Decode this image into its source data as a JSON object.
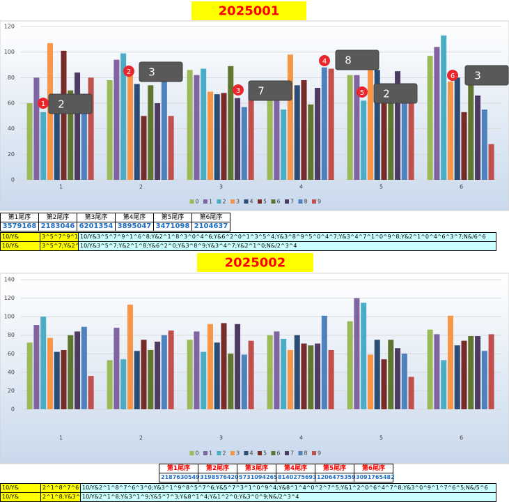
{
  "chart_data": [
    {
      "type": "bar",
      "title": "2025001",
      "categories": [
        "1",
        "2",
        "3",
        "4",
        "5",
        "6"
      ],
      "ylim": [
        0,
        120
      ],
      "yticks": [
        0,
        20,
        40,
        60,
        80,
        100,
        120
      ],
      "grid": true,
      "legend": "bottom",
      "series": [
        {
          "name": "0",
          "color": "#9bbb59",
          "values": [
            60,
            78,
            86,
            75,
            82,
            97
          ]
        },
        {
          "name": "1",
          "color": "#8064a2",
          "values": [
            80,
            94,
            82,
            72,
            82,
            104
          ]
        },
        {
          "name": "2",
          "color": "#4bacc6",
          "values": [
            53,
            99,
            87,
            55,
            62,
            113
          ]
        },
        {
          "name": "3",
          "color": "#f79646",
          "values": [
            107,
            84,
            69,
            98,
            99,
            77
          ]
        },
        {
          "name": "4",
          "color": "#2c4d75",
          "values": [
            67,
            75,
            67,
            74,
            86,
            80
          ]
        },
        {
          "name": "5",
          "color": "#772c2a",
          "values": [
            101,
            50,
            68,
            78,
            62,
            53
          ]
        },
        {
          "name": "6",
          "color": "#5f7530",
          "values": [
            70,
            74,
            89,
            59,
            62,
            76
          ]
        },
        {
          "name": "7",
          "color": "#4d3b62",
          "values": [
            84,
            60,
            64,
            72,
            85,
            66
          ]
        },
        {
          "name": "8",
          "color": "#4f81bd",
          "values": [
            66,
            90,
            57,
            88,
            72,
            55
          ]
        },
        {
          "name": "9",
          "color": "#c0504d",
          "values": [
            80,
            50,
            70,
            87,
            75,
            28
          ]
        }
      ],
      "annotations": [
        {
          "badge": "1",
          "text": "2"
        },
        {
          "badge": "2",
          "text": "3"
        },
        {
          "badge": "3",
          "text": "7"
        },
        {
          "badge": "4",
          "text": "8"
        },
        {
          "badge": "5",
          "text": "2"
        },
        {
          "badge": "6",
          "text": "3"
        }
      ]
    },
    {
      "type": "bar",
      "title": "2025002",
      "categories": [
        "1",
        "2",
        "3",
        "4",
        "5",
        "6"
      ],
      "ylim": [
        0,
        140
      ],
      "yticks": [
        0,
        20,
        40,
        60,
        80,
        100,
        120,
        140
      ],
      "grid": true,
      "legend": "bottom",
      "series": [
        {
          "name": "0",
          "color": "#9bbb59",
          "values": [
            72,
            53,
            75,
            80,
            95,
            86
          ]
        },
        {
          "name": "1",
          "color": "#8064a2",
          "values": [
            91,
            88,
            84,
            84,
            120,
            81
          ]
        },
        {
          "name": "2",
          "color": "#4bacc6",
          "values": [
            100,
            54,
            62,
            76,
            115,
            53
          ]
        },
        {
          "name": "3",
          "color": "#f79646",
          "values": [
            77,
            113,
            92,
            64,
            59,
            101
          ]
        },
        {
          "name": "4",
          "color": "#2c4d75",
          "values": [
            62,
            63,
            72,
            80,
            75,
            69
          ]
        },
        {
          "name": "5",
          "color": "#772c2a",
          "values": [
            64,
            75,
            93,
            71,
            54,
            74
          ]
        },
        {
          "name": "6",
          "color": "#5f7530",
          "values": [
            80,
            64,
            60,
            69,
            75,
            79
          ]
        },
        {
          "name": "7",
          "color": "#4d3b62",
          "values": [
            84,
            73,
            92,
            71,
            66,
            79
          ]
        },
        {
          "name": "8",
          "color": "#4f81bd",
          "values": [
            89,
            80,
            59,
            101,
            60,
            63
          ]
        },
        {
          "name": "9",
          "color": "#c0504d",
          "values": [
            36,
            85,
            74,
            64,
            35,
            81
          ]
        }
      ]
    }
  ],
  "tables": [
    {
      "headers": [
        "第1尾序",
        "第2尾序",
        "第3尾序",
        "第4尾序",
        "第5尾序",
        "第6尾序"
      ],
      "values": [
        "3579168",
        "2183046",
        "6201354",
        "3895047",
        "3471098",
        "2104637"
      ],
      "rows": [
        [
          "10/Y&",
          "3^5^7^9^1^6",
          "10/Y&3^5^7^9^1^6^8;Y&2^1^8^3^0^4^6;Y&6^2^0^1^3^5^4;Y&3^8^9^5^0^4^7;Y&3^4^7^1^0^9^8;Y&2^1^0^4^6^3^7;N&/6^6"
        ],
        [
          "10/Y&",
          "3^5^7;Y&2^1",
          "10/Y&3^5^7;Y&2^1^8;Y&6^2^0;Y&3^8^9;Y&3^4^7;Y&2^1^0;N&/2^3^4"
        ]
      ]
    },
    {
      "headers": [
        "第1尾序",
        "第2尾序",
        "第3尾序",
        "第4尾序",
        "第5尾序",
        "第6尾序"
      ],
      "values": [
        "2187630549",
        "3198576420",
        "5731094265",
        "8140275693",
        "1206475359",
        "3091765482"
      ],
      "rows": [
        [
          "10/Y&",
          "2^1^8^7^6^3",
          "10/Y&2^1^8^7^6^3^0;Y&3^1^9^8^5^7^6;Y&5^7^3^1^0^9^4;Y&8^1^4^0^2^7^5;Y&1^2^0^6^4^7^8;Y&3^0^9^1^7^6^5;N&/5^6"
        ],
        [
          "10/Y&",
          "2^1^8;Y&3^1",
          "10/Y&2^1^8;Y&3^1^9;Y&5^7^3;Y&8^1^4;Y&1^2^0;Y&3^0^9;N&/2^3^4"
        ]
      ]
    }
  ]
}
